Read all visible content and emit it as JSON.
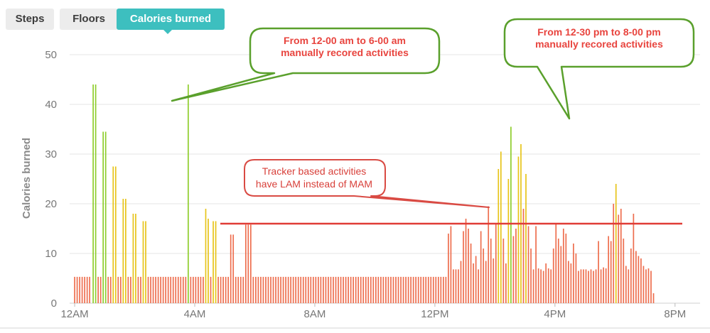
{
  "tabs": [
    {
      "label": "Steps",
      "active": false
    },
    {
      "label": "Floors",
      "active": false
    },
    {
      "label": "Calories burned",
      "active": true
    }
  ],
  "colors": {
    "accent": "#3dbfbf",
    "bar_sedentary": "#ee6e4e",
    "bar_lightly_active": "#e7c41a",
    "bar_very_active": "#8fce2d",
    "callout_green_border": "#5aa02c",
    "callout_red_border": "#d94a43",
    "annotation_text": "#e8443e",
    "grid": "#e6e6e6"
  },
  "annotations": {
    "green_callout_1": [
      "From 12-00 am to 6-00 am",
      "manually recored activities"
    ],
    "green_callout_2": [
      "From 12-30 pm to 8-00  pm",
      "manually recored activities"
    ],
    "red_callout": [
      "Tracker based activities",
      "have LAM instead of MAM"
    ],
    "reference_line_value": 16
  },
  "chart_data": {
    "type": "bar",
    "title": "",
    "xlabel": "",
    "ylabel": "Calories burned",
    "ylim": [
      0,
      50
    ],
    "yticks": [
      0,
      10,
      20,
      30,
      40,
      50
    ],
    "xlim_minutes": [
      -10,
      1250
    ],
    "xticks": [
      {
        "label": "12AM",
        "minute": 0
      },
      {
        "label": "4AM",
        "minute": 240
      },
      {
        "label": "8AM",
        "minute": 480
      },
      {
        "label": "12PM",
        "minute": 720
      },
      {
        "label": "4PM",
        "minute": 960
      },
      {
        "label": "8PM",
        "minute": 1200
      }
    ],
    "grid": true,
    "legend": "none",
    "interval_minutes": 5,
    "x_unit": "minutes after midnight",
    "series": [
      {
        "level": "very_active",
        "color": "#8fce2d",
        "points": [
          [
            37,
            44
          ],
          [
            42,
            44
          ],
          [
            57,
            34.5
          ],
          [
            62,
            34.5
          ],
          [
            227,
            44
          ],
          [
            872,
            35.5
          ]
        ]
      },
      {
        "level": "lightly_active",
        "color": "#e7c41a",
        "points": [
          [
            77,
            27.5
          ],
          [
            82,
            27.5
          ],
          [
            97,
            21
          ],
          [
            102,
            21
          ],
          [
            117,
            18
          ],
          [
            122,
            18
          ],
          [
            137,
            16.5
          ],
          [
            142,
            16.5
          ],
          [
            262,
            19
          ],
          [
            267,
            17
          ],
          [
            277,
            16.5
          ],
          [
            282,
            16.5
          ],
          [
            847,
            27
          ],
          [
            852,
            30.5
          ],
          [
            867,
            25
          ],
          [
            887,
            29.5
          ],
          [
            892,
            32
          ],
          [
            902,
            26
          ],
          [
            1082,
            24
          ]
        ]
      },
      {
        "level": "sedentary",
        "color": "#ee6e4e",
        "points": [
          [
            0,
            5.3
          ],
          [
            5,
            5.3
          ],
          [
            10,
            5.3
          ],
          [
            15,
            5.3
          ],
          [
            20,
            5.3
          ],
          [
            25,
            5.3
          ],
          [
            30,
            5.3
          ],
          [
            47,
            5.3
          ],
          [
            52,
            5.3
          ],
          [
            67,
            5.3
          ],
          [
            72,
            5.3
          ],
          [
            87,
            5.3
          ],
          [
            92,
            5.3
          ],
          [
            107,
            5.3
          ],
          [
            112,
            5.3
          ],
          [
            127,
            5.3
          ],
          [
            132,
            5.3
          ],
          [
            147,
            5.3
          ],
          [
            152,
            5.3
          ],
          [
            157,
            5.3
          ],
          [
            162,
            5.3
          ],
          [
            167,
            5.3
          ],
          [
            172,
            5.3
          ],
          [
            177,
            5.3
          ],
          [
            182,
            5.3
          ],
          [
            187,
            5.3
          ],
          [
            192,
            5.3
          ],
          [
            197,
            5.3
          ],
          [
            202,
            5.3
          ],
          [
            207,
            5.3
          ],
          [
            212,
            5.3
          ],
          [
            217,
            5.3
          ],
          [
            222,
            5.3
          ],
          [
            232,
            5.3
          ],
          [
            237,
            5.3
          ],
          [
            242,
            5.3
          ],
          [
            247,
            5.3
          ],
          [
            252,
            5.3
          ],
          [
            257,
            5.3
          ],
          [
            272,
            5.3
          ],
          [
            287,
            5.3
          ],
          [
            292,
            5.3
          ],
          [
            297,
            5.3
          ],
          [
            302,
            5.3
          ],
          [
            307,
            5.3
          ],
          [
            312,
            13.8
          ],
          [
            317,
            13.8
          ],
          [
            322,
            5.3
          ],
          [
            327,
            5.3
          ],
          [
            332,
            5.3
          ],
          [
            337,
            5.3
          ],
          [
            342,
            15.8
          ],
          [
            347,
            15.8
          ],
          [
            352,
            15.8
          ],
          [
            357,
            5.3
          ],
          [
            362,
            5.3
          ],
          [
            367,
            5.3
          ],
          [
            372,
            5.3
          ],
          [
            377,
            5.3
          ],
          [
            382,
            5.3
          ],
          [
            387,
            5.3
          ],
          [
            392,
            5.3
          ],
          [
            397,
            5.3
          ],
          [
            402,
            5.3
          ],
          [
            407,
            5.3
          ],
          [
            412,
            5.3
          ],
          [
            417,
            5.3
          ],
          [
            422,
            5.3
          ],
          [
            427,
            5.3
          ],
          [
            432,
            5.3
          ],
          [
            437,
            5.3
          ],
          [
            442,
            5.3
          ],
          [
            447,
            5.3
          ],
          [
            452,
            5.3
          ],
          [
            457,
            5.3
          ],
          [
            462,
            5.3
          ],
          [
            467,
            5.3
          ],
          [
            472,
            5.3
          ],
          [
            477,
            5.3
          ],
          [
            482,
            5.3
          ],
          [
            487,
            5.3
          ],
          [
            492,
            5.3
          ],
          [
            497,
            5.3
          ],
          [
            502,
            5.3
          ],
          [
            507,
            5.3
          ],
          [
            512,
            5.3
          ],
          [
            517,
            5.3
          ],
          [
            522,
            5.3
          ],
          [
            527,
            5.3
          ],
          [
            532,
            5.3
          ],
          [
            537,
            5.3
          ],
          [
            542,
            5.3
          ],
          [
            547,
            5.3
          ],
          [
            552,
            5.3
          ],
          [
            557,
            5.3
          ],
          [
            562,
            5.3
          ],
          [
            567,
            5.3
          ],
          [
            572,
            5.3
          ],
          [
            577,
            5.3
          ],
          [
            582,
            5.3
          ],
          [
            587,
            5.3
          ],
          [
            592,
            5.3
          ],
          [
            597,
            5.3
          ],
          [
            602,
            5.3
          ],
          [
            607,
            5.3
          ],
          [
            612,
            5.3
          ],
          [
            617,
            5.3
          ],
          [
            622,
            5.3
          ],
          [
            627,
            5.3
          ],
          [
            632,
            5.3
          ],
          [
            637,
            5.3
          ],
          [
            642,
            5.3
          ],
          [
            647,
            5.3
          ],
          [
            652,
            5.3
          ],
          [
            657,
            5.3
          ],
          [
            662,
            5.3
          ],
          [
            667,
            5.3
          ],
          [
            672,
            5.3
          ],
          [
            677,
            5.3
          ],
          [
            682,
            5.3
          ],
          [
            687,
            5.3
          ],
          [
            692,
            5.3
          ],
          [
            697,
            5.3
          ],
          [
            702,
            5.3
          ],
          [
            707,
            5.3
          ],
          [
            712,
            5.3
          ],
          [
            717,
            5.3
          ],
          [
            722,
            5.3
          ],
          [
            727,
            5.3
          ],
          [
            732,
            5.3
          ],
          [
            737,
            5.3
          ],
          [
            742,
            5.3
          ],
          [
            747,
            14
          ],
          [
            752,
            15.5
          ],
          [
            757,
            6.8
          ],
          [
            762,
            6.8
          ],
          [
            767,
            6.8
          ],
          [
            772,
            8.5
          ],
          [
            777,
            14.5
          ],
          [
            782,
            17
          ],
          [
            787,
            15
          ],
          [
            792,
            12
          ],
          [
            797,
            8
          ],
          [
            802,
            9.5
          ],
          [
            807,
            6.8
          ],
          [
            812,
            14.5
          ],
          [
            817,
            11
          ],
          [
            822,
            8.5
          ],
          [
            827,
            19.5
          ],
          [
            832,
            13
          ],
          [
            837,
            9
          ],
          [
            842,
            16
          ],
          [
            857,
            13
          ],
          [
            862,
            8
          ],
          [
            877,
            13.5
          ],
          [
            882,
            15
          ],
          [
            897,
            19
          ],
          [
            907,
            15.5
          ],
          [
            912,
            11
          ],
          [
            917,
            6.8
          ],
          [
            922,
            15.5
          ],
          [
            927,
            7
          ],
          [
            932,
            6.8
          ],
          [
            937,
            6.5
          ],
          [
            942,
            8
          ],
          [
            947,
            7
          ],
          [
            952,
            6.8
          ],
          [
            957,
            11
          ],
          [
            962,
            16
          ],
          [
            967,
            13
          ],
          [
            972,
            11.5
          ],
          [
            977,
            15
          ],
          [
            982,
            14
          ],
          [
            987,
            8.5
          ],
          [
            992,
            8
          ],
          [
            997,
            12
          ],
          [
            1002,
            10
          ],
          [
            1007,
            6.5
          ],
          [
            1012,
            6.8
          ],
          [
            1017,
            6.8
          ],
          [
            1022,
            6.8
          ],
          [
            1027,
            6.5
          ],
          [
            1032,
            6.8
          ],
          [
            1037,
            6.5
          ],
          [
            1042,
            6.8
          ],
          [
            1047,
            12.5
          ],
          [
            1052,
            6.8
          ],
          [
            1057,
            7.2
          ],
          [
            1062,
            7
          ],
          [
            1067,
            13.5
          ],
          [
            1072,
            12.5
          ],
          [
            1077,
            20
          ],
          [
            1087,
            17.8
          ],
          [
            1092,
            19
          ],
          [
            1097,
            13
          ],
          [
            1102,
            7.5
          ],
          [
            1107,
            6.8
          ],
          [
            1112,
            11
          ],
          [
            1117,
            18
          ],
          [
            1122,
            10.5
          ],
          [
            1127,
            9.5
          ],
          [
            1132,
            9
          ],
          [
            1137,
            7.5
          ],
          [
            1142,
            6.8
          ],
          [
            1147,
            7
          ],
          [
            1152,
            6.5
          ],
          [
            1157,
            2
          ]
        ]
      }
    ]
  }
}
